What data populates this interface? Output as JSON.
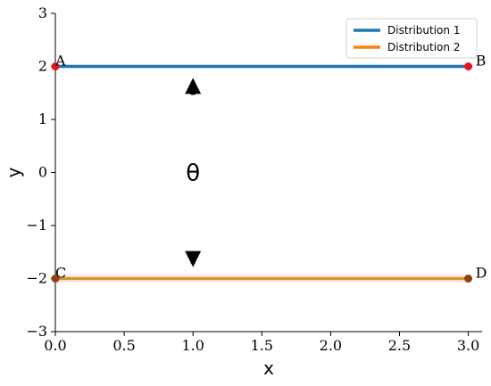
{
  "chart_data": {
    "type": "line",
    "xlabel": "x",
    "ylabel": "y",
    "xlim": [
      0.0,
      3.1
    ],
    "ylim": [
      -3,
      3
    ],
    "x_ticks": [
      0.0,
      0.5,
      1.0,
      1.5,
      2.0,
      2.5,
      3.0
    ],
    "x_tick_labels": [
      "0.0",
      "0.5",
      "1.0",
      "1.5",
      "2.0",
      "2.5",
      "3.0"
    ],
    "y_ticks": [
      -3,
      -2,
      -1,
      0,
      1,
      2,
      3
    ],
    "y_tick_labels": [
      "−3",
      "−2",
      "−1",
      "0",
      "1",
      "2",
      "3"
    ],
    "grid": false,
    "legend_position": "top-right",
    "series": [
      {
        "name": "Distribution 1",
        "color": "#1f77b4",
        "x": [
          0.0,
          3.0
        ],
        "y": [
          2,
          2
        ]
      },
      {
        "name": "Distribution 2",
        "color": "#ff7f0e",
        "x": [
          0.0,
          3.0
        ],
        "y": [
          -2,
          -2
        ]
      }
    ],
    "points": [
      {
        "label": "A",
        "x": 0.0,
        "y": 2,
        "color": "#e8141b"
      },
      {
        "label": "B",
        "x": 3.0,
        "y": 2,
        "color": "#e8141b"
      },
      {
        "label": "C",
        "x": 0.0,
        "y": -2,
        "color": "#8b4513"
      },
      {
        "label": "D",
        "x": 3.0,
        "y": -2,
        "color": "#8b4513"
      }
    ],
    "annotations": [
      {
        "text": "θ",
        "type": "double-arrow",
        "x": 1.0,
        "y_from": -1.75,
        "y_to": 1.75
      }
    ]
  }
}
